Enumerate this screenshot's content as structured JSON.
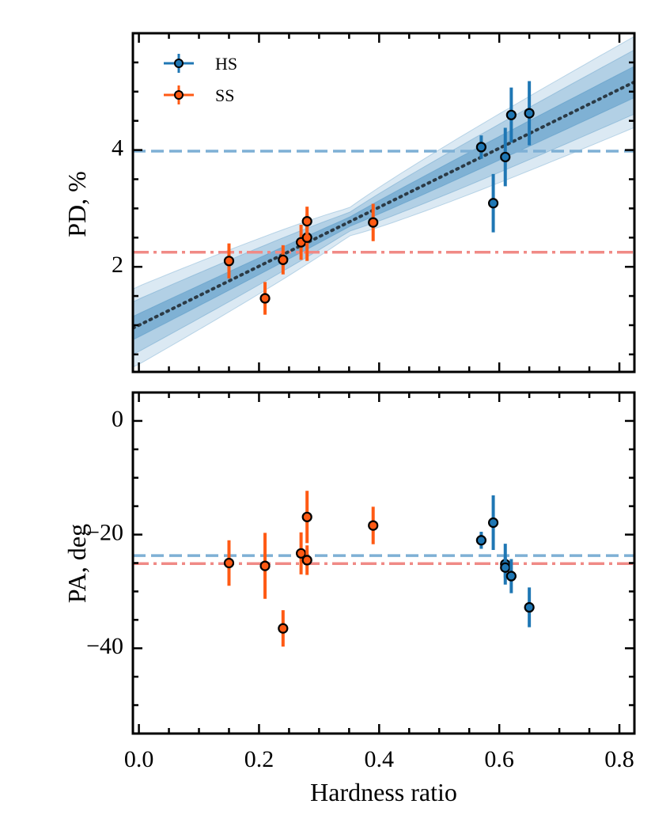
{
  "chart_data": [
    {
      "type": "scatter",
      "panel": "top",
      "ylabel": "PD, %",
      "xlabel": "",
      "xlim": [
        -0.01,
        0.825
      ],
      "ylim": [
        0.2,
        6.0
      ],
      "yticks": [
        2,
        4
      ],
      "ytick_labels": [
        "2",
        "4"
      ],
      "colors": {
        "HS": "#1f77b4",
        "SS": "#ff5a14",
        "fit": "#2b3a45",
        "band": "#1f77b4"
      },
      "legend": {
        "position": "top-left",
        "entries": [
          "HS",
          "SS"
        ]
      },
      "series": [
        {
          "name": "SS",
          "points": [
            {
              "x": 0.15,
              "y": 2.1,
              "err": 0.3
            },
            {
              "x": 0.21,
              "y": 1.46,
              "err": 0.28
            },
            {
              "x": 0.24,
              "y": 2.12,
              "err": 0.25
            },
            {
              "x": 0.27,
              "y": 2.42,
              "err": 0.3
            },
            {
              "x": 0.28,
              "y": 2.5,
              "err": 0.4
            },
            {
              "x": 0.28,
              "y": 2.78,
              "err": 0.25
            },
            {
              "x": 0.39,
              "y": 2.76,
              "err": 0.32
            }
          ]
        },
        {
          "name": "HS",
          "points": [
            {
              "x": 0.57,
              "y": 4.05,
              "err": 0.2
            },
            {
              "x": 0.59,
              "y": 3.09,
              "err": 0.5
            },
            {
              "x": 0.61,
              "y": 3.88,
              "err": 0.5
            },
            {
              "x": 0.62,
              "y": 4.6,
              "err": 0.47
            },
            {
              "x": 0.65,
              "y": 4.63,
              "err": 0.55
            }
          ]
        }
      ],
      "hlines": [
        {
          "name": "HS mean",
          "y": 3.98,
          "style": "dashed",
          "color": "#7eb0d5"
        },
        {
          "name": "SS mean",
          "y": 2.25,
          "style": "dashdot",
          "color": "#f08a86"
        }
      ],
      "fit": {
        "slope": 5.05,
        "intercept": 1.0,
        "bands": [
          {
            "sigma": 1,
            "half_width_at": [
              [
                0.0,
                0.2
              ],
              [
                0.35,
                0.08
              ],
              [
                0.825,
                0.27
              ]
            ]
          },
          {
            "sigma": 2,
            "half_width_at": [
              [
                0.0,
                0.45
              ],
              [
                0.35,
                0.16
              ],
              [
                0.825,
                0.55
              ]
            ]
          },
          {
            "sigma": 3,
            "half_width_at": [
              [
                0.0,
                0.67
              ],
              [
                0.35,
                0.24
              ],
              [
                0.825,
                0.78
              ]
            ]
          }
        ]
      }
    },
    {
      "type": "scatter",
      "panel": "bottom",
      "ylabel": "PA, deg",
      "xlabel": "Hardness ratio",
      "xlim": [
        -0.01,
        0.825
      ],
      "ylim": [
        -55,
        5
      ],
      "yticks": [
        0,
        -20,
        -40
      ],
      "ytick_labels": [
        "0",
        "−20",
        "−40"
      ],
      "xticks": [
        0.0,
        0.2,
        0.4,
        0.6,
        0.8
      ],
      "xtick_labels": [
        "0.0",
        "0.2",
        "0.4",
        "0.6",
        "0.8"
      ],
      "series": [
        {
          "name": "SS",
          "points": [
            {
              "x": 0.15,
              "y": -25.0,
              "err": 4.0
            },
            {
              "x": 0.21,
              "y": -25.5,
              "err": 5.8
            },
            {
              "x": 0.24,
              "y": -36.5,
              "err": 3.2
            },
            {
              "x": 0.27,
              "y": -23.3,
              "err": 3.7
            },
            {
              "x": 0.28,
              "y": -24.5,
              "err": 2.6
            },
            {
              "x": 0.28,
              "y": -16.9,
              "err": 4.6
            },
            {
              "x": 0.39,
              "y": -18.4,
              "err": 3.3
            }
          ]
        },
        {
          "name": "HS",
          "points": [
            {
              "x": 0.57,
              "y": -21.0,
              "err": 1.5
            },
            {
              "x": 0.59,
              "y": -17.9,
              "err": 4.8
            },
            {
              "x": 0.61,
              "y": -25.2,
              "err": 3.6
            },
            {
              "x": 0.61,
              "y": -25.8,
              "err": 1.8
            },
            {
              "x": 0.62,
              "y": -27.3,
              "err": 3.0
            },
            {
              "x": 0.65,
              "y": -32.8,
              "err": 3.5
            }
          ]
        }
      ],
      "hlines": [
        {
          "name": "HS mean",
          "y": -23.7,
          "style": "dashed",
          "color": "#7eb0d5"
        },
        {
          "name": "SS mean",
          "y": -25.1,
          "style": "dashdot",
          "color": "#f08a86"
        }
      ]
    }
  ],
  "legend_labels": {
    "hs": "HS",
    "ss": "SS"
  },
  "axis_titles": {
    "top_y": "PD, %",
    "bottom_y": "PA, deg",
    "x": "Hardness ratio"
  }
}
